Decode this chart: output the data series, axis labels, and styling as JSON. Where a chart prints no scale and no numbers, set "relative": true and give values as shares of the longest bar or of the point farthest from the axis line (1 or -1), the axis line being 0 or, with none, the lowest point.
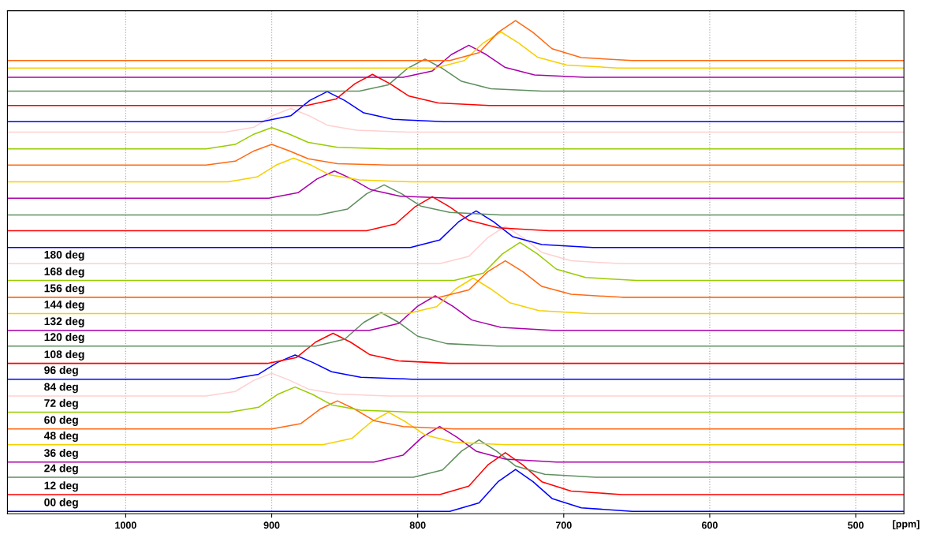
{
  "chart_data": {
    "type": "line",
    "relative": true,
    "xlabel": "[ppm]",
    "xlim": [
      1081,
      467
    ],
    "xticks": [
      1000,
      900,
      800,
      700,
      600,
      500
    ],
    "grid": "x",
    "legend": false,
    "line_style": "solid",
    "marker": "none",
    "tick_labels": "x",
    "series": [
      {
        "name": "00 deg",
        "color": "#0000ff",
        "x": [
          1081,
          778,
          758,
          745,
          733,
          721,
          708,
          688,
          653,
          467
        ],
        "values": [
          0.005,
          0.005,
          0.022,
          0.065,
          0.09,
          0.065,
          0.031,
          0.012,
          0.005,
          0.005
        ]
      },
      {
        "name": "12 deg",
        "color": "#ff0000",
        "x": [
          1081,
          785,
          765,
          752,
          740,
          728,
          715,
          695,
          660,
          467
        ],
        "values": [
          0.039,
          0.039,
          0.056,
          0.099,
          0.124,
          0.099,
          0.065,
          0.046,
          0.039,
          0.039
        ]
      },
      {
        "name": "24 deg",
        "color": "#5f8f5f",
        "x": [
          1081,
          803,
          783,
          770,
          758,
          746,
          733,
          713,
          678,
          467
        ],
        "values": [
          0.074,
          0.074,
          0.089,
          0.127,
          0.15,
          0.127,
          0.097,
          0.08,
          0.074,
          0.074
        ]
      },
      {
        "name": "36 deg",
        "color": "#aa00aa",
        "x": [
          1081,
          830,
          810,
          797,
          785,
          773,
          760,
          740,
          705,
          467
        ],
        "values": [
          0.105,
          0.105,
          0.119,
          0.155,
          0.177,
          0.155,
          0.127,
          0.111,
          0.105,
          0.105
        ]
      },
      {
        "name": "48 deg",
        "color": "#f5d000",
        "x": [
          1081,
          865,
          845,
          832,
          820,
          808,
          795,
          775,
          740,
          467
        ],
        "values": [
          0.14,
          0.14,
          0.153,
          0.186,
          0.206,
          0.186,
          0.16,
          0.145,
          0.14,
          0.14
        ]
      },
      {
        "name": "60 deg",
        "color": "#ff6a13",
        "x": [
          1081,
          900,
          880,
          867,
          855,
          843,
          830,
          810,
          775,
          467
        ],
        "values": [
          0.172,
          0.172,
          0.183,
          0.212,
          0.229,
          0.212,
          0.189,
          0.177,
          0.172,
          0.172
        ]
      },
      {
        "name": "72 deg",
        "color": "#99cc00",
        "x": [
          1081,
          929,
          909,
          896,
          884,
          872,
          859,
          839,
          804,
          467
        ],
        "values": [
          0.206,
          0.206,
          0.216,
          0.242,
          0.257,
          0.242,
          0.221,
          0.21,
          0.206,
          0.206
        ]
      },
      {
        "name": "84 deg",
        "color": "#ffd0d0",
        "x": [
          1081,
          945,
          925,
          912,
          900,
          888,
          875,
          855,
          820,
          467
        ],
        "values": [
          0.239,
          0.239,
          0.248,
          0.271,
          0.285,
          0.271,
          0.253,
          0.243,
          0.239,
          0.239
        ]
      },
      {
        "name": "96 deg",
        "color": "#0000ff",
        "x": [
          1081,
          929,
          909,
          896,
          884,
          872,
          859,
          839,
          804,
          467
        ],
        "values": [
          0.273,
          0.273,
          0.283,
          0.307,
          0.322,
          0.307,
          0.288,
          0.277,
          0.273,
          0.273
        ]
      },
      {
        "name": "108 deg",
        "color": "#ff0000",
        "x": [
          1081,
          903,
          883,
          870,
          858,
          846,
          833,
          813,
          778,
          467
        ],
        "values": [
          0.305,
          0.305,
          0.317,
          0.348,
          0.366,
          0.348,
          0.323,
          0.31,
          0.305,
          0.305
        ]
      },
      {
        "name": "120 deg",
        "color": "#5f8f5f",
        "x": [
          1081,
          870,
          850,
          837,
          825,
          813,
          800,
          780,
          745,
          467
        ],
        "values": [
          0.34,
          0.34,
          0.354,
          0.388,
          0.408,
          0.388,
          0.36,
          0.345,
          0.34,
          0.34
        ]
      },
      {
        "name": "132 deg",
        "color": "#aa00aa",
        "x": [
          1081,
          833,
          813,
          800,
          788,
          776,
          763,
          743,
          708,
          467
        ],
        "values": [
          0.372,
          0.372,
          0.386,
          0.421,
          0.442,
          0.421,
          0.393,
          0.378,
          0.372,
          0.372
        ]
      },
      {
        "name": "144 deg",
        "color": "#f5d000",
        "x": [
          1081,
          807,
          787,
          774,
          762,
          750,
          737,
          717,
          682,
          467
        ],
        "values": [
          0.406,
          0.406,
          0.42,
          0.456,
          0.478,
          0.456,
          0.428,
          0.412,
          0.406,
          0.406
        ]
      },
      {
        "name": "156 deg",
        "color": "#ff6a13",
        "x": [
          1081,
          785,
          765,
          752,
          740,
          728,
          715,
          695,
          660,
          467
        ],
        "values": [
          0.439,
          0.439,
          0.454,
          0.491,
          0.513,
          0.491,
          0.461,
          0.445,
          0.439,
          0.439
        ]
      },
      {
        "name": "168 deg",
        "color": "#99cc00",
        "x": [
          1081,
          775,
          755,
          742,
          730,
          718,
          705,
          685,
          650,
          467
        ],
        "values": [
          0.473,
          0.473,
          0.488,
          0.527,
          0.55,
          0.527,
          0.496,
          0.479,
          0.473,
          0.473
        ]
      },
      {
        "name": "180 deg",
        "color": "#ffd0d0",
        "x": [
          1081,
          785,
          765,
          752,
          740,
          728,
          715,
          695,
          660,
          467
        ],
        "values": [
          0.507,
          0.507,
          0.522,
          0.56,
          0.583,
          0.56,
          0.53,
          0.513,
          0.507,
          0.507
        ]
      },
      {
        "color": "#0000ff",
        "x": [
          1081,
          805,
          785,
          772,
          760,
          748,
          735,
          715,
          680,
          467
        ],
        "values": [
          0.54,
          0.54,
          0.555,
          0.592,
          0.614,
          0.592,
          0.562,
          0.546,
          0.54,
          0.54
        ]
      },
      {
        "color": "#ff0000",
        "x": [
          1081,
          835,
          815,
          802,
          790,
          778,
          765,
          745,
          710,
          467
        ],
        "values": [
          0.574,
          0.574,
          0.588,
          0.622,
          0.643,
          0.622,
          0.595,
          0.58,
          0.574,
          0.574
        ]
      },
      {
        "color": "#5f8f5f",
        "x": [
          1081,
          868,
          848,
          835,
          823,
          811,
          798,
          778,
          743,
          467
        ],
        "values": [
          0.606,
          0.606,
          0.618,
          0.649,
          0.667,
          0.649,
          0.624,
          0.611,
          0.606,
          0.606
        ]
      },
      {
        "color": "#aa00aa",
        "x": [
          1081,
          902,
          882,
          869,
          857,
          845,
          832,
          812,
          777,
          467
        ],
        "values": [
          0.64,
          0.64,
          0.651,
          0.679,
          0.695,
          0.679,
          0.657,
          0.644,
          0.64,
          0.64
        ]
      },
      {
        "color": "#f5d000",
        "x": [
          1081,
          930,
          910,
          897,
          885,
          873,
          860,
          840,
          805,
          467
        ],
        "values": [
          0.673,
          0.673,
          0.683,
          0.707,
          0.721,
          0.707,
          0.687,
          0.677,
          0.673,
          0.673
        ]
      },
      {
        "color": "#ff6a13",
        "x": [
          1081,
          945,
          925,
          912,
          900,
          888,
          875,
          855,
          820,
          467
        ],
        "values": [
          0.707,
          0.707,
          0.715,
          0.736,
          0.749,
          0.736,
          0.72,
          0.71,
          0.707,
          0.707
        ]
      },
      {
        "color": "#99cc00",
        "x": [
          1081,
          945,
          925,
          912,
          900,
          888,
          875,
          855,
          820,
          467
        ],
        "values": [
          0.74,
          0.74,
          0.749,
          0.77,
          0.783,
          0.77,
          0.753,
          0.743,
          0.74,
          0.74
        ]
      },
      {
        "color": "#ffd0d0",
        "x": [
          1081,
          932,
          912,
          899,
          887,
          875,
          862,
          842,
          807,
          467
        ],
        "values": [
          0.774,
          0.774,
          0.784,
          0.808,
          0.822,
          0.808,
          0.788,
          0.778,
          0.774,
          0.774
        ]
      },
      {
        "color": "#0000ff",
        "x": [
          1081,
          907,
          887,
          874,
          862,
          850,
          837,
          817,
          782,
          467
        ],
        "values": [
          0.795,
          0.795,
          0.807,
          0.838,
          0.856,
          0.838,
          0.813,
          0.8,
          0.795,
          0.795
        ]
      },
      {
        "color": "#ff0000",
        "x": [
          1081,
          876,
          856,
          843,
          831,
          819,
          806,
          786,
          751,
          467
        ],
        "values": [
          0.828,
          0.828,
          0.841,
          0.872,
          0.891,
          0.872,
          0.847,
          0.833,
          0.828,
          0.828
        ]
      },
      {
        "color": "#5f8f5f",
        "x": [
          1081,
          840,
          820,
          807,
          795,
          783,
          770,
          750,
          715,
          467
        ],
        "values": [
          0.857,
          0.857,
          0.87,
          0.903,
          0.922,
          0.903,
          0.877,
          0.862,
          0.857,
          0.857
        ]
      },
      {
        "color": "#aa00aa",
        "x": [
          1081,
          810,
          790,
          777,
          765,
          753,
          740,
          720,
          685,
          467
        ],
        "values": [
          0.885,
          0.885,
          0.898,
          0.931,
          0.95,
          0.931,
          0.905,
          0.89,
          0.885,
          0.885
        ]
      },
      {
        "color": "#f5d000",
        "x": [
          1081,
          788,
          768,
          755,
          743,
          731,
          718,
          698,
          663,
          467
        ],
        "values": [
          0.904,
          0.904,
          0.919,
          0.955,
          0.977,
          0.955,
          0.926,
          0.91,
          0.904,
          0.904
        ]
      },
      {
        "color": "#ff6a13",
        "x": [
          1081,
          778,
          758,
          745,
          733,
          721,
          708,
          688,
          653,
          467
        ],
        "values": [
          0.919,
          0.919,
          0.935,
          0.976,
          1,
          0.976,
          0.943,
          0.925,
          0.919,
          0.919
        ]
      }
    ]
  }
}
